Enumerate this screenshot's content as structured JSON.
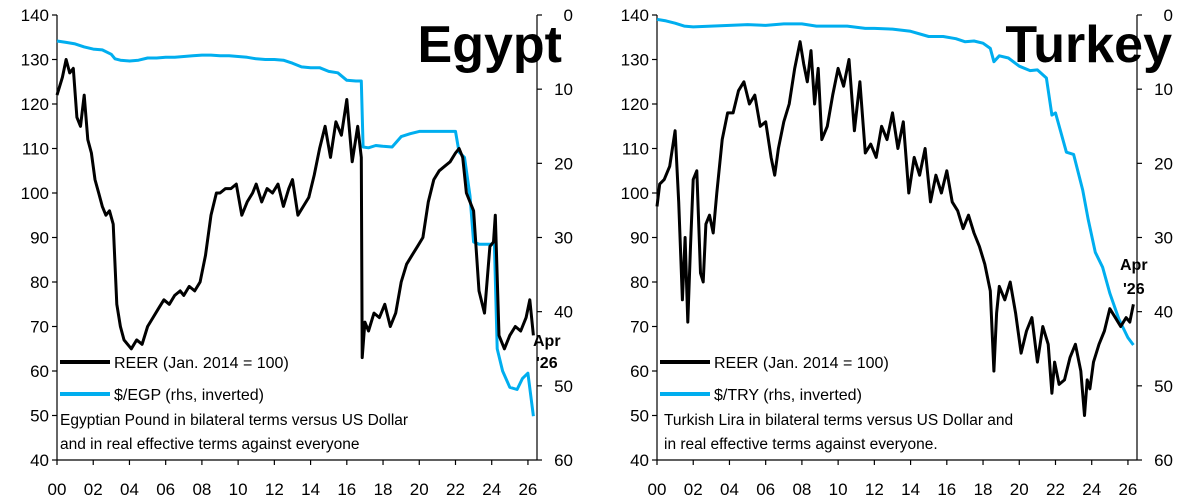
{
  "chart_data": [
    {
      "type": "line",
      "title": "Egypt",
      "caption_lines": [
        "Egyptian Pound in bilateral terms versus US Dollar",
        "and in real effective terms against everyone"
      ],
      "x_ticks": [
        "00",
        "02",
        "04",
        "06",
        "08",
        "10",
        "12",
        "14",
        "16",
        "18",
        "20",
        "22",
        "24",
        "26"
      ],
      "xlim": [
        2000,
        2026.5
      ],
      "ylim_left": [
        40,
        140
      ],
      "ylim_right": [
        0,
        60
      ],
      "y_ticks_left": [
        40,
        50,
        60,
        70,
        80,
        90,
        100,
        110,
        120,
        130,
        140
      ],
      "y_ticks_right": [
        0,
        10,
        20,
        30,
        40,
        50,
        60
      ],
      "annotation": [
        "Apr",
        "'26"
      ],
      "series": [
        {
          "name": "REER (Jan. 2014 = 100)",
          "axis": "left",
          "color": "#000000",
          "x": [
            2000.0,
            2000.3,
            2000.5,
            2000.7,
            2000.9,
            2001.1,
            2001.3,
            2001.5,
            2001.7,
            2001.9,
            2002.1,
            2002.3,
            2002.5,
            2002.7,
            2002.9,
            2003.1,
            2003.3,
            2003.5,
            2003.7,
            2003.9,
            2004.1,
            2004.4,
            2004.7,
            2005.0,
            2005.3,
            2005.6,
            2005.9,
            2006.2,
            2006.5,
            2006.8,
            2007.0,
            2007.3,
            2007.6,
            2007.9,
            2008.2,
            2008.5,
            2008.8,
            2009.0,
            2009.3,
            2009.6,
            2009.9,
            2010.2,
            2010.5,
            2010.8,
            2011.0,
            2011.3,
            2011.6,
            2011.9,
            2012.2,
            2012.5,
            2012.8,
            2013.0,
            2013.3,
            2013.6,
            2013.9,
            2014.2,
            2014.5,
            2014.8,
            2015.1,
            2015.4,
            2015.7,
            2016.0,
            2016.3,
            2016.6,
            2016.8,
            2016.85,
            2017.0,
            2017.2,
            2017.5,
            2017.8,
            2018.1,
            2018.4,
            2018.7,
            2019.0,
            2019.3,
            2019.6,
            2019.9,
            2020.2,
            2020.5,
            2020.8,
            2021.1,
            2021.4,
            2021.7,
            2022.0,
            2022.2,
            2022.4,
            2022.6,
            2022.8,
            2023.0,
            2023.3,
            2023.6,
            2023.9,
            2024.1,
            2024.2,
            2024.4,
            2024.7,
            2025.0,
            2025.3,
            2025.6,
            2025.9,
            2026.1,
            2026.3
          ],
          "values": [
            122,
            126,
            130,
            127,
            128,
            117,
            115,
            122,
            112,
            109,
            103,
            100,
            97,
            95,
            96,
            93,
            75,
            70,
            67,
            66,
            65,
            67,
            66,
            70,
            72,
            74,
            76,
            75,
            77,
            78,
            77,
            79,
            78,
            80,
            86,
            95,
            100,
            100,
            101,
            101,
            102,
            95,
            98,
            100,
            102,
            98,
            101,
            100,
            102,
            97,
            101,
            103,
            95,
            97,
            99,
            104,
            110,
            115,
            108,
            116,
            113,
            121,
            107,
            115,
            108,
            63,
            71,
            69,
            73,
            72,
            75,
            70,
            73,
            80,
            84,
            86,
            88,
            90,
            98,
            103,
            105,
            106,
            107,
            109,
            110,
            108,
            100,
            98,
            96,
            78,
            73,
            88,
            89,
            95,
            68,
            65,
            68,
            70,
            69,
            72,
            76,
            68
          ]
        },
        {
          "name": "$/EGP (rhs, inverted)",
          "axis": "right",
          "color": "#00aeef",
          "x": [
            2000.0,
            2000.5,
            2001.0,
            2001.5,
            2002.0,
            2002.5,
            2003.0,
            2003.2,
            2003.5,
            2004.0,
            2004.5,
            2005.0,
            2005.5,
            2006.0,
            2006.5,
            2007.0,
            2007.5,
            2008.0,
            2008.5,
            2009.0,
            2009.5,
            2010.0,
            2010.5,
            2011.0,
            2011.5,
            2012.0,
            2012.5,
            2013.0,
            2013.5,
            2014.0,
            2014.5,
            2015.0,
            2015.5,
            2016.0,
            2016.5,
            2016.8,
            2016.9,
            2017.2,
            2017.6,
            2018.0,
            2018.5,
            2019.0,
            2019.5,
            2020.0,
            2020.5,
            2021.0,
            2021.5,
            2022.0,
            2022.2,
            2022.5,
            2022.8,
            2023.0,
            2023.3,
            2023.8,
            2024.0,
            2024.15,
            2024.3,
            2024.6,
            2025.0,
            2025.4,
            2025.7,
            2026.0,
            2026.3
          ],
          "values": [
            3.5,
            3.7,
            3.9,
            4.3,
            4.6,
            4.7,
            5.3,
            5.9,
            6.1,
            6.2,
            6.1,
            5.8,
            5.8,
            5.7,
            5.7,
            5.6,
            5.5,
            5.4,
            5.4,
            5.5,
            5.5,
            5.6,
            5.7,
            5.9,
            6.0,
            6.0,
            6.1,
            6.5,
            7.0,
            7.1,
            7.1,
            7.6,
            7.8,
            8.8,
            8.9,
            8.9,
            17.8,
            17.9,
            17.6,
            17.7,
            17.8,
            16.4,
            16.0,
            15.7,
            15.7,
            15.7,
            15.7,
            15.7,
            18.5,
            19.2,
            24.4,
            30.6,
            30.9,
            30.9,
            30.9,
            30.9,
            45,
            48,
            50.2,
            50.5,
            49,
            48.3,
            54.1
          ]
        }
      ]
    },
    {
      "type": "line",
      "title": "Turkey",
      "caption_lines": [
        "Turkish Lira in bilateral terms versus US Dollar and",
        "in real effective terms against everyone."
      ],
      "x_ticks": [
        "00",
        "02",
        "04",
        "06",
        "08",
        "10",
        "12",
        "14",
        "16",
        "18",
        "20",
        "22",
        "24",
        "26"
      ],
      "xlim": [
        2000,
        2026.5
      ],
      "ylim_left": [
        40,
        140
      ],
      "ylim_right": [
        0,
        60
      ],
      "y_ticks_left": [
        40,
        50,
        60,
        70,
        80,
        90,
        100,
        110,
        120,
        130,
        140
      ],
      "y_ticks_right": [
        0,
        10,
        20,
        30,
        40,
        50,
        60
      ],
      "annotation": [
        "Apr",
        "'26"
      ],
      "series": [
        {
          "name": "REER (Jan. 2014 = 100)",
          "axis": "left",
          "color": "#000000",
          "x": [
            2000.0,
            2000.15,
            2000.4,
            2000.7,
            2001.0,
            2001.2,
            2001.4,
            2001.55,
            2001.7,
            2001.85,
            2002.0,
            2002.2,
            2002.4,
            2002.55,
            2002.7,
            2002.9,
            2003.1,
            2003.3,
            2003.6,
            2003.9,
            2004.2,
            2004.5,
            2004.8,
            2005.1,
            2005.4,
            2005.7,
            2006.0,
            2006.3,
            2006.5,
            2006.7,
            2007.0,
            2007.3,
            2007.6,
            2007.9,
            2008.1,
            2008.3,
            2008.5,
            2008.7,
            2008.9,
            2009.1,
            2009.4,
            2009.7,
            2010.0,
            2010.3,
            2010.6,
            2010.9,
            2011.2,
            2011.5,
            2011.8,
            2012.1,
            2012.4,
            2012.7,
            2013.0,
            2013.3,
            2013.6,
            2013.9,
            2014.2,
            2014.5,
            2014.8,
            2015.1,
            2015.4,
            2015.7,
            2016.0,
            2016.3,
            2016.6,
            2016.9,
            2017.2,
            2017.5,
            2017.8,
            2018.1,
            2018.4,
            2018.6,
            2018.75,
            2018.9,
            2019.2,
            2019.5,
            2019.8,
            2020.1,
            2020.4,
            2020.7,
            2021.0,
            2021.3,
            2021.6,
            2021.8,
            2021.95,
            2022.2,
            2022.5,
            2022.8,
            2023.1,
            2023.4,
            2023.6,
            2023.75,
            2023.9,
            2024.1,
            2024.4,
            2024.7,
            2025.0,
            2025.3,
            2025.6,
            2025.9,
            2026.1,
            2026.3
          ],
          "values": [
            97,
            102,
            103,
            106,
            114,
            98,
            76,
            90,
            71,
            88,
            103,
            105,
            82,
            80,
            93,
            95,
            91,
            100,
            112,
            118,
            118,
            123,
            125,
            120,
            122,
            115,
            116,
            108,
            104,
            110,
            116,
            120,
            128,
            134,
            129,
            125,
            132,
            120,
            128,
            112,
            115,
            122,
            128,
            124,
            130,
            114,
            125,
            109,
            111,
            108,
            115,
            112,
            118,
            110,
            116,
            100,
            108,
            104,
            110,
            98,
            104,
            100,
            105,
            98,
            96,
            92,
            95,
            91,
            88,
            84,
            78,
            60,
            73,
            79,
            76,
            80,
            73,
            64,
            69,
            72,
            62,
            70,
            66,
            55,
            62,
            57,
            58,
            63,
            66,
            60,
            50,
            58,
            56,
            62,
            66,
            69,
            74,
            72,
            70,
            72,
            71,
            75
          ]
        },
        {
          "name": "$/TRY (rhs, inverted)",
          "axis": "right",
          "color": "#00aeef",
          "x": [
            2000.0,
            2000.5,
            2001.0,
            2001.5,
            2002.0,
            2003.0,
            2004.0,
            2005.0,
            2006.0,
            2007.0,
            2008.0,
            2008.8,
            2009.5,
            2010.5,
            2011.5,
            2012.0,
            2013.0,
            2014.0,
            2015.0,
            2015.8,
            2016.5,
            2017.0,
            2017.5,
            2018.0,
            2018.4,
            2018.6,
            2018.9,
            2019.4,
            2020.0,
            2020.6,
            2021.0,
            2021.5,
            2021.8,
            2022.0,
            2022.6,
            2023.0,
            2023.5,
            2023.8,
            2024.2,
            2024.6,
            2025.0,
            2025.5,
            2026.0,
            2026.3
          ],
          "values": [
            0.6,
            0.8,
            1.1,
            1.5,
            1.6,
            1.5,
            1.4,
            1.3,
            1.4,
            1.2,
            1.2,
            1.5,
            1.5,
            1.5,
            1.8,
            1.8,
            1.9,
            2.2,
            2.9,
            2.9,
            3.2,
            3.6,
            3.5,
            3.8,
            4.5,
            6.3,
            5.5,
            5.8,
            6.9,
            7.5,
            7.4,
            8.5,
            13.5,
            13.2,
            18.5,
            18.8,
            23.6,
            27.5,
            32,
            34,
            37.5,
            41,
            43.5,
            44.5
          ]
        }
      ]
    }
  ],
  "legend": {
    "egypt": {
      "reer": "REER (Jan. 2014 = 100)",
      "fx": "$/EGP (rhs, inverted)"
    },
    "turkey": {
      "reer": "REER (Jan. 2014 = 100)",
      "fx": "$/TRY (rhs, inverted)"
    }
  },
  "colors": {
    "reer": "#000000",
    "fx": "#00aeef"
  }
}
